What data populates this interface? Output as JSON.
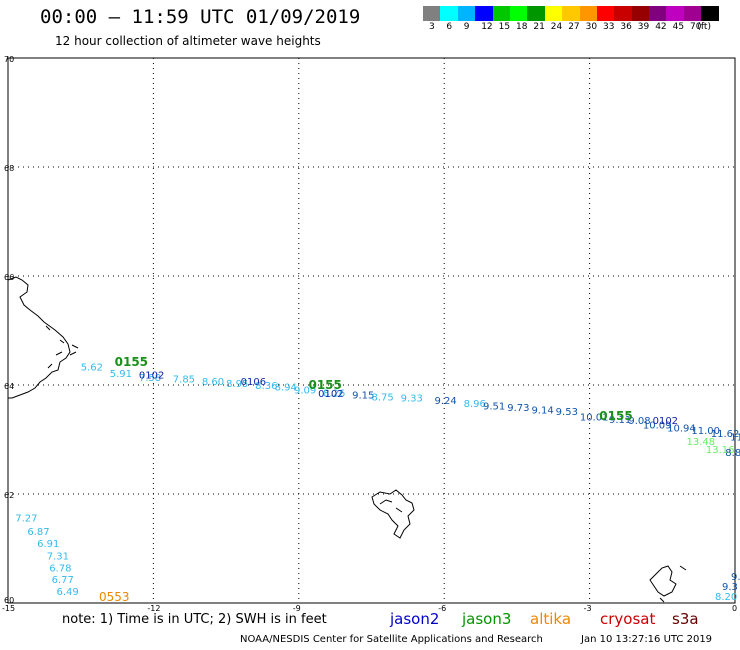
{
  "header": {
    "title": "00:00 – 11:59 UTC 01/09/2019",
    "subtitle": "12 hour collection of altimeter wave heights"
  },
  "colorbar": {
    "colors": [
      "#808080",
      "#00ffff",
      "#00b4ff",
      "#0000ff",
      "#00c800",
      "#00ff00",
      "#009600",
      "#ffff00",
      "#ffc800",
      "#ff9600",
      "#ff0000",
      "#c80000",
      "#960000",
      "#800080",
      "#c000c0",
      "#a00090",
      "#000000"
    ],
    "labels": [
      "3",
      "6",
      "9",
      "12",
      "15",
      "18",
      "21",
      "24",
      "27",
      "30",
      "33",
      "36",
      "39",
      "42",
      "45",
      "70",
      "(ft)"
    ]
  },
  "map": {
    "lat_ticks": [
      "70",
      "68",
      "66",
      "64",
      "62",
      "60"
    ],
    "lon_ticks": [
      "-15",
      "-12",
      "-9",
      "-6",
      "-3",
      "0"
    ],
    "landmass": "Iceland east coast, Faroe Islands, Shetland Islands",
    "track_main_labels": [
      {
        "text": "5.62",
        "lon": -13.5,
        "lat": 64.27,
        "color": "#33bbee"
      },
      {
        "text": "5.91",
        "lon": -12.9,
        "lat": 64.15,
        "color": "#33bbee"
      },
      {
        "text": "7.58",
        "lon": -12.3,
        "lat": 64.07,
        "color": "#33bbee"
      },
      {
        "text": "7.85",
        "lon": -11.6,
        "lat": 64.05,
        "color": "#33bbee"
      },
      {
        "text": "8.60",
        "lon": -11.0,
        "lat": 64.0,
        "color": "#33bbee"
      },
      {
        "text": "8.95",
        "lon": -10.5,
        "lat": 63.96,
        "color": "#33bbee"
      },
      {
        "text": "8.36",
        "lon": -9.9,
        "lat": 63.93,
        "color": "#33bbee"
      },
      {
        "text": "8.94",
        "lon": -9.5,
        "lat": 63.9,
        "color": "#33bbee"
      },
      {
        "text": "9.09",
        "lon": -9.1,
        "lat": 63.84,
        "color": "#33bbee"
      },
      {
        "text": "8.26",
        "lon": -8.5,
        "lat": 63.79,
        "color": "#33bbee"
      },
      {
        "text": "9.15",
        "lon": -7.9,
        "lat": 63.75,
        "color": "#1155aa"
      },
      {
        "text": "8.75",
        "lon": -7.5,
        "lat": 63.72,
        "color": "#33bbee"
      },
      {
        "text": "9.33",
        "lon": -6.9,
        "lat": 63.7,
        "color": "#33bbee"
      },
      {
        "text": "9.24",
        "lon": -6.2,
        "lat": 63.65,
        "color": "#1155aa"
      },
      {
        "text": "8.96",
        "lon": -5.6,
        "lat": 63.6,
        "color": "#33bbee"
      },
      {
        "text": "9.51",
        "lon": -5.2,
        "lat": 63.55,
        "color": "#1155aa"
      },
      {
        "text": "9.73",
        "lon": -4.7,
        "lat": 63.52,
        "color": "#1155aa"
      },
      {
        "text": "9.14",
        "lon": -4.2,
        "lat": 63.48,
        "color": "#1155aa"
      },
      {
        "text": "9.53",
        "lon": -3.7,
        "lat": 63.45,
        "color": "#1155aa"
      },
      {
        "text": "10.01",
        "lon": -3.2,
        "lat": 63.35,
        "color": "#1155aa"
      },
      {
        "text": "9.11",
        "lon": -2.6,
        "lat": 63.3,
        "color": "#1155aa"
      },
      {
        "text": "9.08",
        "lon": -2.2,
        "lat": 63.28,
        "color": "#1155aa"
      },
      {
        "text": "10.09",
        "lon": -1.9,
        "lat": 63.2,
        "color": "#1155aa"
      },
      {
        "text": "10.94",
        "lon": -1.4,
        "lat": 63.15,
        "color": "#1155aa"
      },
      {
        "text": "11.00",
        "lon": -0.9,
        "lat": 63.1,
        "color": "#1155aa"
      },
      {
        "text": "11.62",
        "lon": -0.5,
        "lat": 63.05,
        "color": "#1155aa"
      },
      {
        "text": "11.15",
        "lon": -0.1,
        "lat": 62.98,
        "color": "#1155aa"
      },
      {
        "text": "11.85",
        "lon": 0.4,
        "lat": 62.9,
        "color": "#1155aa"
      }
    ],
    "green_labels": [
      {
        "text": "0155",
        "lon": -12.8,
        "lat": 64.35
      },
      {
        "text": "0155",
        "lon": -8.8,
        "lat": 63.93
      },
      {
        "text": "0155",
        "lon": -2.8,
        "lat": 63.36
      }
    ],
    "other_labels": [
      {
        "text": "0102",
        "lon": -12.3,
        "lat": 64.12,
        "color": "#1122aa"
      },
      {
        "text": "0106",
        "lon": -10.2,
        "lat": 64.0,
        "color": "#1122aa"
      },
      {
        "text": "0102",
        "lon": -8.6,
        "lat": 63.78,
        "color": "#1122aa"
      },
      {
        "text": "0102",
        "lon": -1.7,
        "lat": 63.28,
        "color": "#1122aa"
      },
      {
        "text": "13.48",
        "lon": -1.0,
        "lat": 62.9,
        "color": "#66ee66"
      },
      {
        "text": "13.16",
        "lon": -0.6,
        "lat": 62.75,
        "color": "#66ee66"
      },
      {
        "text": "8.8",
        "lon": -0.2,
        "lat": 62.7,
        "color": "#1155aa"
      }
    ],
    "bottom_track": [
      {
        "text": "7.27",
        "lon": -14.85,
        "lat": 61.5
      },
      {
        "text": "6.87",
        "lon": -14.6,
        "lat": 61.25
      },
      {
        "text": "6.91",
        "lon": -14.4,
        "lat": 61.03
      },
      {
        "text": "7.31",
        "lon": -14.2,
        "lat": 60.8
      },
      {
        "text": "6.78",
        "lon": -14.15,
        "lat": 60.58
      },
      {
        "text": "6.77",
        "lon": -14.1,
        "lat": 60.37
      },
      {
        "text": "6.49",
        "lon": -14.0,
        "lat": 60.15
      }
    ],
    "bottom_time": {
      "text": "0553",
      "color": "#ee8800"
    },
    "right_edge_labels": [
      {
        "text": "9.",
        "color": "#1155aa"
      },
      {
        "text": "9.3",
        "color": "#1155aa"
      },
      {
        "text": "8.20",
        "color": "#33bbee"
      }
    ]
  },
  "footer": {
    "note": "note:  1) Time is in UTC;  2) SWH is in feet",
    "sat_jason2": "jason2",
    "sat_jason3": "jason3",
    "sat_altika": "altika",
    "sat_cryosat": "cryosat",
    "sat_s3a": "s3a",
    "credit": "NOAA/NESDIS Center for Satellite Applications and Research",
    "timestamp": "Jan 10 13:27:16 UTC 2019"
  },
  "colors": {
    "jason2": "#0000cc",
    "jason3": "#009600",
    "altika": "#ee8800",
    "cryosat": "#cc0000",
    "s3a": "#660000"
  }
}
